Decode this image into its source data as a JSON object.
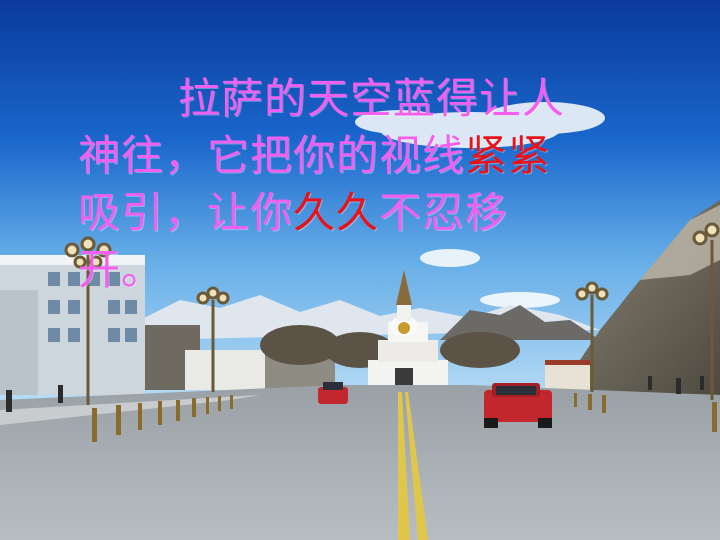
{
  "slide": {
    "line1": "拉萨的天空蓝得让人",
    "line2_a": "神往，它把你的视线",
    "line2_hl": "紧紧",
    "line3_a": "吸引，让你",
    "line3_hl": "久久",
    "line3_b": "不忍移",
    "line4": "开。"
  },
  "colors": {
    "text": "#f25ef0",
    "highlight": "#e8121a",
    "sky_top": "#0a3a9c",
    "sky_bottom": "#a9d4f5"
  }
}
